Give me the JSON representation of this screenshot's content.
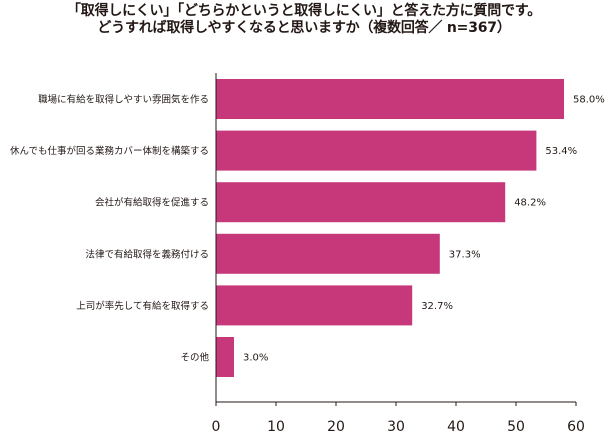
{
  "chart_data": {
    "type": "bar",
    "orientation": "horizontal",
    "title": [
      "「取得しにくい」「どちらかというと取得しにくい」と答えた方に質問です。",
      "どうすれば取得しやすくなると思いますか（複数回答／ n=367）"
    ],
    "xlabel": "",
    "ylabel": "",
    "categories": [
      "職場に有給を取得しやすい雰囲気を作る",
      "休んでも仕事が回る業務カバー体制を構築する",
      "会社が有給取得を促進する",
      "法律で有給取得を義務付ける",
      "上司が率先して有給を取得する",
      "その他"
    ],
    "values": [
      58.0,
      53.4,
      48.2,
      37.3,
      32.7,
      3.0
    ],
    "value_labels": [
      "58.0%",
      "53.4%",
      "48.2%",
      "37.3%",
      "32.7%",
      "3.0%"
    ],
    "xlim": [
      0,
      60
    ],
    "xticks": [
      0,
      10,
      20,
      30,
      40,
      50,
      60
    ],
    "grid": false,
    "legend": "none",
    "bar_color": "#c7387b"
  }
}
